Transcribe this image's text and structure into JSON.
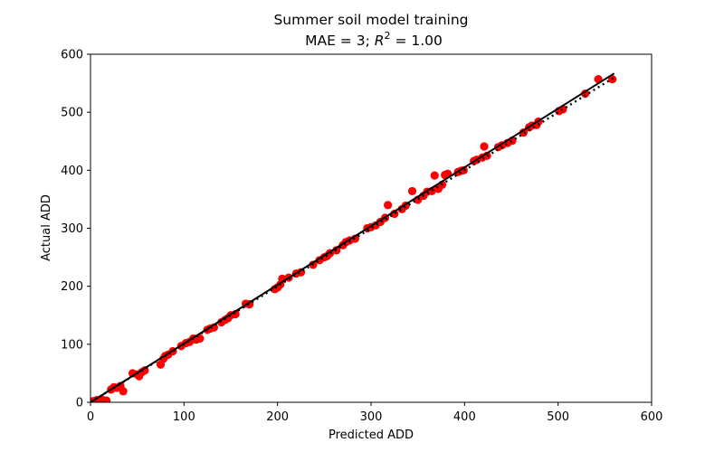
{
  "chart_data": {
    "type": "scatter",
    "title": "Summer soil model training",
    "subtitle": {
      "prefix": "MAE = 3; ",
      "r_letter": "R",
      "r_sup": "2",
      "suffix": " = 1.00"
    },
    "xlabel": "Predicted ADD",
    "ylabel": "Actual ADD",
    "xlim": [
      0,
      600
    ],
    "ylim": [
      0,
      600
    ],
    "xticks": [
      0,
      100,
      200,
      300,
      400,
      500,
      600
    ],
    "yticks": [
      0,
      100,
      200,
      300,
      400,
      500,
      600
    ],
    "grid": false,
    "point_color": "#ff0000",
    "line_color": "#000000",
    "points": [
      [
        3,
        2
      ],
      [
        7,
        4
      ],
      [
        9,
        2
      ],
      [
        12,
        5
      ],
      [
        17,
        3
      ],
      [
        22,
        22
      ],
      [
        25,
        26
      ],
      [
        28,
        25
      ],
      [
        32,
        28
      ],
      [
        35,
        19
      ],
      [
        45,
        50
      ],
      [
        50,
        48
      ],
      [
        52,
        45
      ],
      [
        55,
        52
      ],
      [
        58,
        55
      ],
      [
        75,
        65
      ],
      [
        78,
        75
      ],
      [
        80,
        80
      ],
      [
        83,
        82
      ],
      [
        88,
        88
      ],
      [
        97,
        97
      ],
      [
        102,
        102
      ],
      [
        106,
        104
      ],
      [
        110,
        110
      ],
      [
        113,
        108
      ],
      [
        117,
        110
      ],
      [
        125,
        125
      ],
      [
        128,
        127
      ],
      [
        132,
        129
      ],
      [
        140,
        138
      ],
      [
        144,
        142
      ],
      [
        147,
        145
      ],
      [
        150,
        150
      ],
      [
        155,
        152
      ],
      [
        166,
        170
      ],
      [
        170,
        169
      ],
      [
        197,
        195
      ],
      [
        200,
        198
      ],
      [
        203,
        203
      ],
      [
        205,
        213
      ],
      [
        212,
        215
      ],
      [
        220,
        222
      ],
      [
        225,
        224
      ],
      [
        238,
        237
      ],
      [
        245,
        245
      ],
      [
        250,
        250
      ],
      [
        253,
        252
      ],
      [
        256,
        257
      ],
      [
        263,
        262
      ],
      [
        270,
        271
      ],
      [
        273,
        276
      ],
      [
        277,
        279
      ],
      [
        283,
        282
      ],
      [
        296,
        300
      ],
      [
        300,
        302
      ],
      [
        305,
        305
      ],
      [
        310,
        311
      ],
      [
        315,
        318
      ],
      [
        318,
        340
      ],
      [
        325,
        325
      ],
      [
        333,
        333
      ],
      [
        337,
        339
      ],
      [
        344,
        364
      ],
      [
        350,
        349
      ],
      [
        356,
        356
      ],
      [
        360,
        363
      ],
      [
        365,
        364
      ],
      [
        368,
        391
      ],
      [
        372,
        368
      ],
      [
        376,
        375
      ],
      [
        379,
        392
      ],
      [
        382,
        394
      ],
      [
        393,
        397
      ],
      [
        396,
        399
      ],
      [
        399,
        400
      ],
      [
        410,
        416
      ],
      [
        413,
        418
      ],
      [
        419,
        422
      ],
      [
        421,
        441
      ],
      [
        424,
        425
      ],
      [
        436,
        440
      ],
      [
        440,
        443
      ],
      [
        446,
        447
      ],
      [
        451,
        451
      ],
      [
        463,
        465
      ],
      [
        469,
        474
      ],
      [
        472,
        477
      ],
      [
        477,
        478
      ],
      [
        479,
        484
      ],
      [
        501,
        502
      ],
      [
        505,
        505
      ],
      [
        529,
        532
      ],
      [
        543,
        557
      ],
      [
        558,
        557
      ]
    ],
    "fit_line": {
      "x": [
        0,
        560
      ],
      "y": [
        0,
        567
      ]
    },
    "identity_line": {
      "x": [
        0,
        560
      ],
      "y": [
        0,
        560
      ]
    }
  }
}
